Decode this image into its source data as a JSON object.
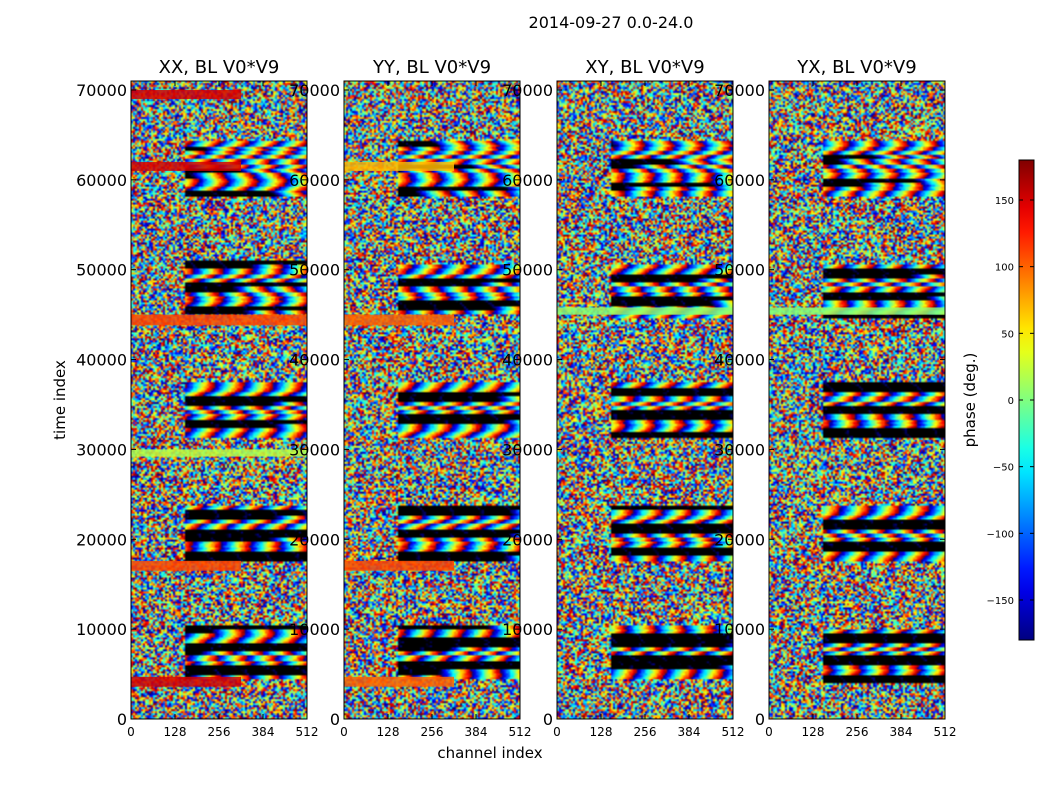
{
  "figure": {
    "suptitle": "2014-09-27 0.0-24.0",
    "xlabel": "channel index",
    "ylabel": "time index"
  },
  "chart_data": {
    "type": "heatmap",
    "title": "2014-09-27 0.0-24.0",
    "xlabel": "channel index",
    "ylabel": "time index",
    "xlim": [
      0,
      512
    ],
    "ylim": [
      0,
      71000
    ],
    "x_ticks": [
      0,
      128,
      256,
      384,
      512
    ],
    "y_ticks": [
      0,
      10000,
      20000,
      30000,
      40000,
      50000,
      60000,
      70000
    ],
    "panels": [
      {
        "title": "XX, BL V0*V9",
        "bands": [
          {
            "t0": 3600,
            "t1": 4700,
            "c1": 320,
            "phase": 150
          },
          {
            "t0": 16500,
            "t1": 17600,
            "c1": 320,
            "phase": 110
          },
          {
            "t0": 29200,
            "t1": 30000,
            "c1": 512,
            "phase": 20
          },
          {
            "t0": 43800,
            "t1": 45000,
            "c1": 512,
            "phase": 110
          },
          {
            "t0": 61000,
            "t1": 62000,
            "c1": 320,
            "phase": 150
          },
          {
            "t0": 69000,
            "t1": 70000,
            "c1": 320,
            "phase": 150
          }
        ]
      },
      {
        "title": "YY, BL V0*V9",
        "bands": [
          {
            "t0": 3600,
            "t1": 4700,
            "c1": 320,
            "phase": 100
          },
          {
            "t0": 16500,
            "t1": 17600,
            "c1": 320,
            "phase": 110
          },
          {
            "t0": 43800,
            "t1": 45000,
            "c1": 320,
            "phase": 100
          },
          {
            "t0": 61000,
            "t1": 62000,
            "c1": 320,
            "phase": 70
          }
        ]
      },
      {
        "title": "XY, BL V0*V9",
        "bands": [
          {
            "t0": 45000,
            "t1": 45800,
            "c1": 512,
            "phase": 5
          }
        ]
      },
      {
        "title": "YX, BL V0*V9",
        "bands": [
          {
            "t0": 45000,
            "t1": 45800,
            "c1": 512,
            "phase": 5
          }
        ]
      }
    ],
    "colorbar": {
      "label": "phase (deg.)",
      "range": [
        -180,
        180
      ],
      "ticks": [
        -150,
        -100,
        -50,
        0,
        50,
        100,
        150
      ],
      "tick_labels": [
        "−150",
        "−100",
        "−50",
        "0",
        "50",
        "100",
        "150"
      ],
      "colormap": "jet"
    }
  }
}
